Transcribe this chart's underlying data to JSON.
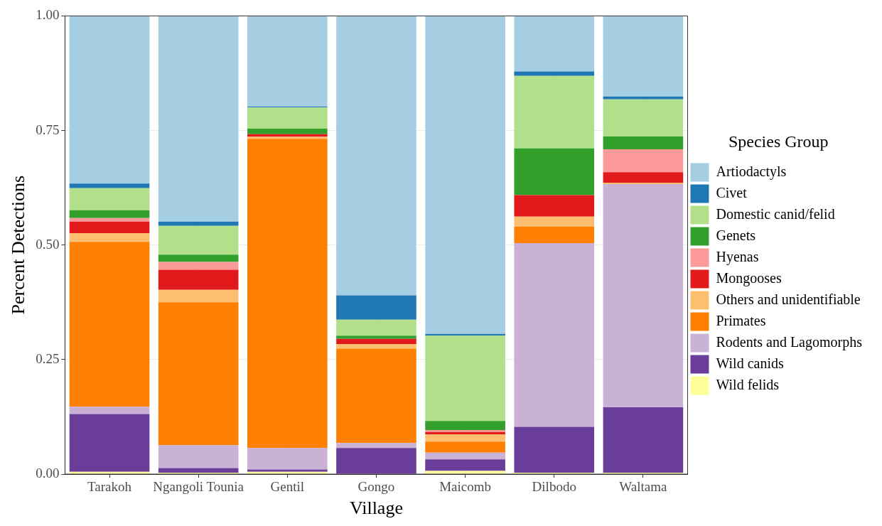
{
  "chart_data": {
    "type": "bar",
    "stacked": true,
    "xlabel": "Village",
    "ylabel": "Percent Detections",
    "legend_title": "Species Group",
    "legend": "right",
    "grid": true,
    "categories": [
      "Tarakoh",
      "Ngangoli Tounia",
      "Gentil",
      "Gongo",
      "Maicomb",
      "Dilbodo",
      "Waltama"
    ],
    "ylim": [
      0,
      1
    ],
    "yticks": [
      {
        "value": 0,
        "label": "0.00"
      },
      {
        "value": 0.25,
        "label": "0.25"
      },
      {
        "value": 0.5,
        "label": "0.50"
      },
      {
        "value": 0.75,
        "label": "0.75"
      },
      {
        "value": 1,
        "label": "1.00"
      }
    ],
    "series": [
      {
        "name": "Wild felids",
        "color": "#ffff99",
        "values": [
          0.005,
          0.003,
          0.005,
          0,
          0.007,
          0.003,
          0.003
        ]
      },
      {
        "name": "Wild canids",
        "color": "#6a3d9a",
        "values": [
          0.126,
          0.01,
          0.005,
          0.057,
          0.025,
          0.1,
          0.143
        ]
      },
      {
        "name": "Rodents and Lagomorphs",
        "color": "#cab2d6",
        "values": [
          0.016,
          0.05,
          0.047,
          0.011,
          0.015,
          0.401,
          0.487
        ]
      },
      {
        "name": "Primates",
        "color": "#ff7f00",
        "values": [
          0.36,
          0.312,
          0.675,
          0.206,
          0.024,
          0.036,
          0
        ]
      },
      {
        "name": "Others and unidentifiable",
        "color": "#fdbf6f",
        "values": [
          0.019,
          0.027,
          0.004,
          0.01,
          0.016,
          0.022,
          0.003
        ]
      },
      {
        "name": "Mongooses",
        "color": "#e31a1c",
        "values": [
          0.025,
          0.044,
          0.006,
          0.011,
          0.005,
          0.047,
          0.023
        ]
      },
      {
        "name": "Hyenas",
        "color": "#fb9a99",
        "values": [
          0.008,
          0.017,
          0,
          0,
          0.004,
          0,
          0.05
        ]
      },
      {
        "name": "Genets",
        "color": "#33a02c",
        "values": [
          0.017,
          0.016,
          0.012,
          0.007,
          0.02,
          0.102,
          0.028
        ]
      },
      {
        "name": "Domestic canid/felid",
        "color": "#b2df8a",
        "values": [
          0.048,
          0.063,
          0.046,
          0.035,
          0.186,
          0.158,
          0.081
        ]
      },
      {
        "name": "Civet",
        "color": "#1f78b4",
        "values": [
          0.01,
          0.009,
          0.002,
          0.053,
          0.004,
          0.01,
          0.006
        ]
      },
      {
        "name": "Artiodactyls",
        "color": "#a6cee3",
        "values": [
          0.366,
          0.449,
          0.198,
          0.61,
          0.694,
          0.121,
          0.176
        ]
      }
    ]
  }
}
